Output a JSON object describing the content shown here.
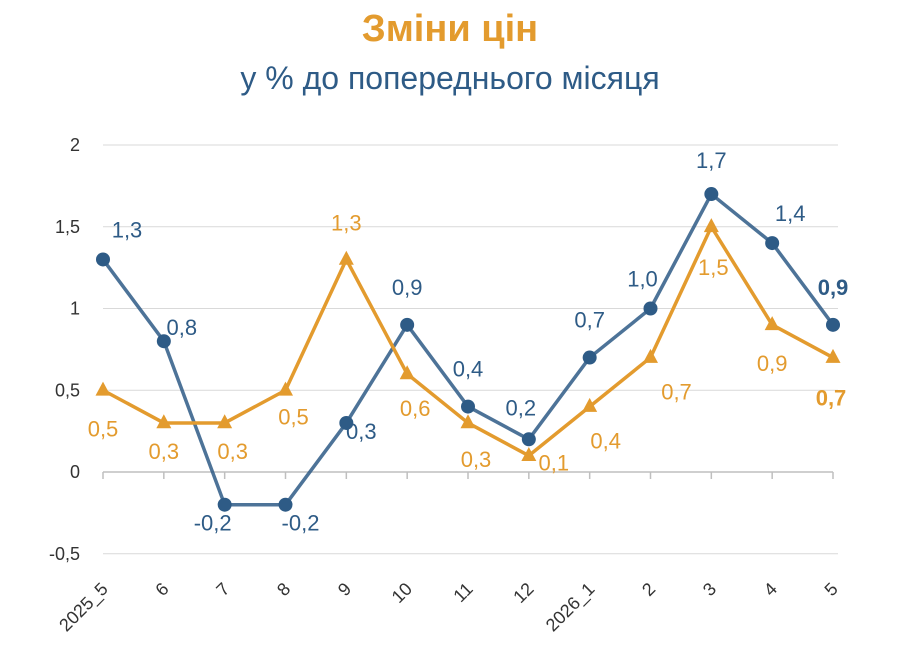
{
  "chart_data": {
    "type": "line",
    "title": "Зміни цін",
    "subtitle": "у % до попереднього місяця",
    "categories": [
      "2025_5",
      "6",
      "7",
      "8",
      "9",
      "10",
      "11",
      "12",
      "2026_1",
      "2",
      "3",
      "4",
      "5"
    ],
    "yticks": [
      "-0,5",
      "0",
      "0,5",
      "1",
      "1,5",
      "2"
    ],
    "ylim": [
      -0.5,
      2
    ],
    "grid": true,
    "series": [
      {
        "color": "#2e5b86",
        "marker": "circle",
        "values": [
          1.3,
          0.8,
          -0.2,
          -0.2,
          0.3,
          0.9,
          0.4,
          0.2,
          0.7,
          1.0,
          1.7,
          1.4,
          0.9
        ],
        "labels": [
          "1,3",
          "0,8",
          "-0,2",
          "-0,2",
          "0,3",
          "0,9",
          "0,4",
          "0,2",
          "0,7",
          "1,0",
          "1,7",
          "1,4",
          "0,9"
        ]
      },
      {
        "color": "#e39b2e",
        "marker": "triangle",
        "values": [
          0.5,
          0.3,
          0.3,
          0.5,
          1.3,
          0.6,
          0.3,
          0.1,
          0.4,
          0.7,
          1.5,
          0.9,
          0.7
        ],
        "labels": [
          "0,5",
          "0,3",
          "0,3",
          "0,5",
          "1,3",
          "0,6",
          "0,3",
          "0,1",
          "0,4",
          "0,7",
          "1,5",
          "0,9",
          "0,7"
        ]
      }
    ]
  }
}
